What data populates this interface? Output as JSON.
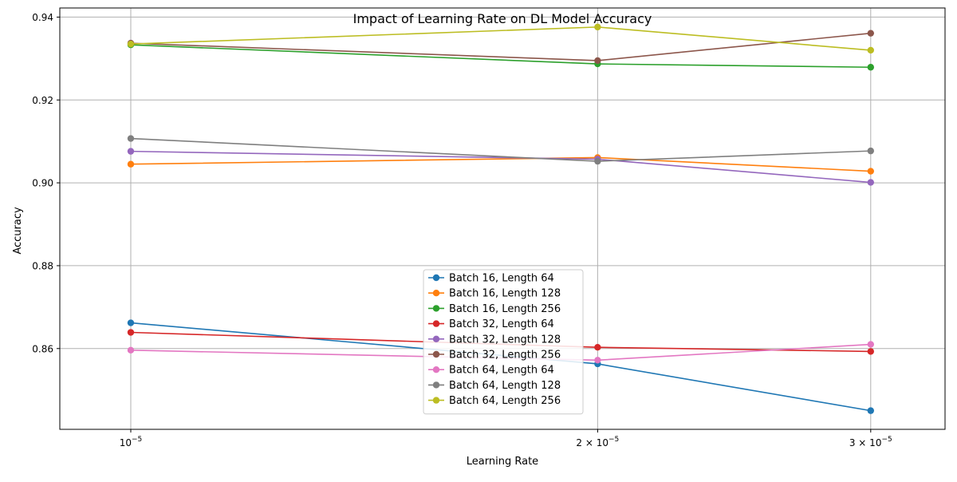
{
  "chart_data": {
    "type": "line",
    "title": "Impact of Learning Rate on DL Model Accuracy",
    "xlabel": "Learning Rate",
    "ylabel": "Accuracy",
    "x_scale": "log",
    "x": [
      1e-05,
      2e-05,
      3e-05
    ],
    "xticks": [
      {
        "value": 1e-05,
        "mantissa": "",
        "exp": "−5"
      },
      {
        "value": 2e-05,
        "mantissa": "2 × ",
        "exp": "−5"
      },
      {
        "value": 3e-05,
        "mantissa": "3 × ",
        "exp": "−5"
      }
    ],
    "xlim": [
      9e-06,
      3.35e-05
    ],
    "ylim": [
      0.8405,
      0.9422
    ],
    "yticks": [
      {
        "value": 0.86,
        "label": "0.86"
      },
      {
        "value": 0.88,
        "label": "0.88"
      },
      {
        "value": 0.9,
        "label": "0.90"
      },
      {
        "value": 0.92,
        "label": "0.92"
      },
      {
        "value": 0.94,
        "label": "0.94"
      }
    ],
    "grid": true,
    "legend_position": "lower center",
    "series": [
      {
        "name": "Batch 16, Length 64",
        "color": "#1f77b4",
        "values": [
          0.8662,
          0.8563,
          0.845
        ]
      },
      {
        "name": "Batch 16, Length 128",
        "color": "#ff7f0e",
        "values": [
          0.9045,
          0.9061,
          0.9028
        ]
      },
      {
        "name": "Batch 16, Length 256",
        "color": "#2ca02c",
        "values": [
          0.9333,
          0.9287,
          0.9279
        ]
      },
      {
        "name": "Batch 32, Length 64",
        "color": "#d62728",
        "values": [
          0.8639,
          0.8603,
          0.8593
        ]
      },
      {
        "name": "Batch 32, Length 128",
        "color": "#9467bd",
        "values": [
          0.9076,
          0.9057,
          0.9001
        ]
      },
      {
        "name": "Batch 32, Length 256",
        "color": "#8c564b",
        "values": [
          0.9337,
          0.9295,
          0.9361
        ]
      },
      {
        "name": "Batch 64, Length 64",
        "color": "#e377c2",
        "values": [
          0.8596,
          0.8572,
          0.861
        ]
      },
      {
        "name": "Batch 64, Length 128",
        "color": "#7f7f7f",
        "values": [
          0.9107,
          0.9052,
          0.9077
        ]
      },
      {
        "name": "Batch 64, Length 256",
        "color": "#bcbd22",
        "values": [
          0.9335,
          0.9376,
          0.932
        ]
      }
    ]
  }
}
